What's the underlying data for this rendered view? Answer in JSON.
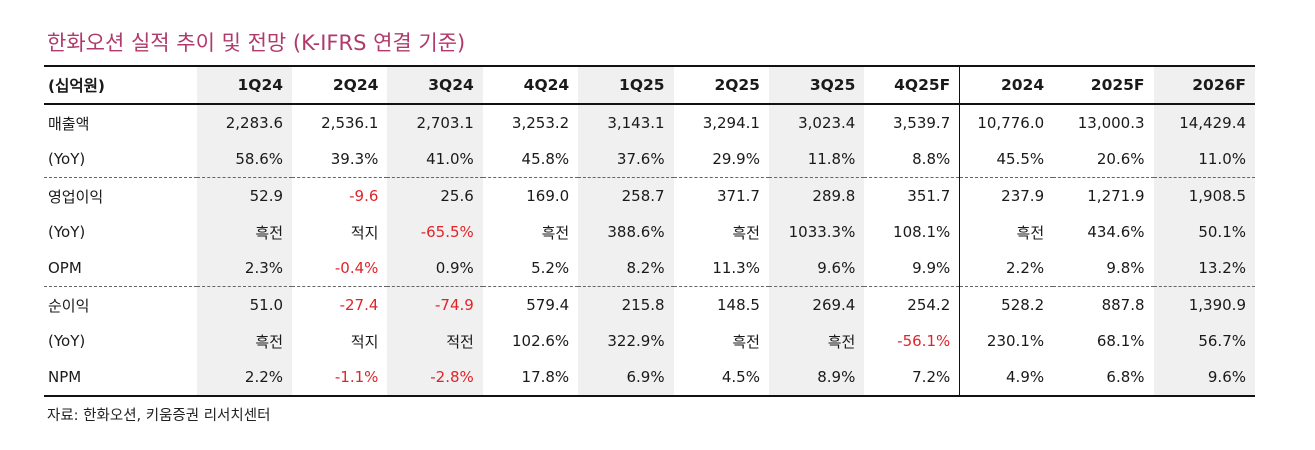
{
  "title": "한화오션 실적 추이 및 전망 (K-IFRS 연결 기준)",
  "header": [
    "(십억원)",
    "1Q24",
    "2Q24",
    "3Q24",
    "4Q24",
    "1Q25",
    "2Q25",
    "3Q25",
    "4Q25F",
    "2024",
    "2025F",
    "2026F"
  ],
  "rows": [
    {
      "label": "매출액",
      "values": [
        "2,283.6",
        "2,536.1",
        "2,703.1",
        "3,253.2",
        "3,143.1",
        "3,294.1",
        "3,023.4",
        "3,539.7",
        "10,776.0",
        "13,000.3",
        "14,429.4"
      ]
    },
    {
      "label": "(YoY)",
      "values": [
        "58.6%",
        "39.3%",
        "41.0%",
        "45.8%",
        "37.6%",
        "29.9%",
        "11.8%",
        "8.8%",
        "45.5%",
        "20.6%",
        "11.0%"
      ]
    },
    {
      "label": "영업이익",
      "values": [
        "52.9",
        "-9.6",
        "25.6",
        "169.0",
        "258.7",
        "371.7",
        "289.8",
        "351.7",
        "237.9",
        "1,271.9",
        "1,908.5"
      ]
    },
    {
      "label": "(YoY)",
      "values": [
        "흑전",
        "적지",
        "-65.5%",
        "흑전",
        "388.6%",
        "흑전",
        "1033.3%",
        "108.1%",
        "흑전",
        "434.6%",
        "50.1%"
      ]
    },
    {
      "label": "OPM",
      "values": [
        "2.3%",
        "-0.4%",
        "0.9%",
        "5.2%",
        "8.2%",
        "11.3%",
        "9.6%",
        "9.9%",
        "2.2%",
        "9.8%",
        "13.2%"
      ]
    },
    {
      "label": "순이익",
      "values": [
        "51.0",
        "-27.4",
        "-74.9",
        "579.4",
        "215.8",
        "148.5",
        "269.4",
        "254.2",
        "528.2",
        "887.8",
        "1,390.9"
      ]
    },
    {
      "label": "(YoY)",
      "values": [
        "흑전",
        "적지",
        "적전",
        "102.6%",
        "322.9%",
        "흑전",
        "흑전",
        "-56.1%",
        "230.1%",
        "68.1%",
        "56.7%"
      ]
    },
    {
      "label": "NPM",
      "values": [
        "2.2%",
        "-1.1%",
        "-2.8%",
        "17.8%",
        "6.9%",
        "4.5%",
        "8.9%",
        "7.2%",
        "4.9%",
        "6.8%",
        "9.6%"
      ]
    }
  ],
  "source": "자료: 한화오션, 키움증권 리서치센터",
  "colors": {
    "title": "#b03a6b",
    "negative": "#e0242a",
    "shade": "#f0f0f0"
  }
}
